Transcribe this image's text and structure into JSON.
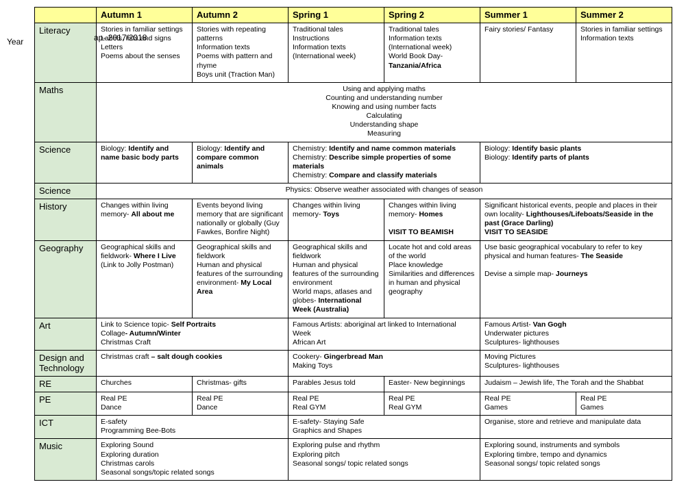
{
  "page": {
    "year_label": "Year",
    "overlay": "ap- 2017/2018"
  },
  "headers": [
    "Autumn 1",
    "Autumn 2",
    "Spring 1",
    "Spring 2",
    "Summer 1",
    "Summer 2"
  ],
  "rows": {
    "literacy": {
      "label": "Literacy",
      "a1": "Stories in familiar settings<br>Labels, lists and signs<br>Letters<br>Poems about the senses",
      "a2": "Stories with repeating patterns<br>Information texts<br>Poems with pattern and rhyme<br>Boys unit (Traction Man)",
      "sp1": "Traditional tales<br>Instructions<br>Information texts<br>(International week)",
      "sp2": "Traditional tales<br>Information texts<br>(International week)<br>World Book Day-<br><b>Tanzania/Africa</b>",
      "su1": "Fairy stories/ Fantasy",
      "su2": "Stories in familiar settings<br>Information texts"
    },
    "maths": {
      "label": "Maths",
      "merged": "Using and applying maths<br>Counting and understanding number<br>Knowing and using number facts<br>Calculating<br>Understanding shape<br>Measuring"
    },
    "science1": {
      "label": "Science",
      "a1": "Biology: <b>Identify and name basic body parts</b>",
      "a2": "Biology: <b>Identify and compare common animals</b>",
      "sp": "Chemistry: <b>Identify and name common materials</b><br>Chemistry: <b>Describe simple properties of some materials</b><br>Chemistry: <b>Compare and classify materials</b>",
      "su": "Biology: <b>Identify basic plants</b><br>Biology: <b>Identify parts of plants</b>"
    },
    "science2": {
      "label": "Science",
      "merged": "Physics: Observe weather associated with changes of season"
    },
    "history": {
      "label": "History",
      "a1": "Changes within living memory- <b>All about me</b>",
      "a2": "Events beyond living memory that are significant nationally or globally (Guy Fawkes, Bonfire Night)",
      "sp1": "Changes within living memory- <b>Toys</b>",
      "sp2": "Changes within living memory- <b>Homes</b><br><br><b>VISIT TO BEAMISH</b>",
      "su": "Significant historical events, people and places in their own locality- <b>Lighthouses/Lifeboats/Seaside in the past (Grace  Darling)</b><br><b>VISIT TO SEASIDE</b>"
    },
    "geography": {
      "label": "Geography",
      "a1": "Geographical skills and fieldwork- <b>Where I Live</b> (Link to Jolly Postman)",
      "a2": "Geographical skills and fieldwork<br>Human and physical features of the surrounding environment- <b>My Local Area</b>",
      "sp1": "Geographical skills and fieldwork<br>Human and physical features of the surrounding environment<br>World maps, atlases and globes- <b>International Week (Australia)</b>",
      "sp2": "Locate hot and cold areas of the world<br>Place knowledge<br>Similarities and differences in human and physical geography",
      "su": "Use basic geographical vocabulary to refer to key physical and human features- <b>The Seaside</b><br><br>Devise a simple map- <b>Journeys</b>"
    },
    "art": {
      "label": "Art",
      "a": "Link to Science topic- <b>Self Portraits</b><br>Collage<b>- Autumn/Winter</b><br>Christmas Craft",
      "sp": "Famous Artists: aboriginal art linked to International Week<br>African Art",
      "su": "Famous Artist- <b>Van Gogh</b><br>Underwater pictures<br>Sculptures- lighthouses"
    },
    "dt": {
      "label": "Design and Technology",
      "a": "Christmas craft <b>– salt dough cookies</b>",
      "sp": "Cookery- <b>Gingerbread Man</b><br>Making Toys",
      "su": "Moving Pictures<br>Sculptures- lighthouses"
    },
    "re": {
      "label": "RE",
      "a1": "Churches",
      "a2": "Christmas- gifts",
      "sp1": "Parables Jesus told",
      "sp2": "Easter- New beginnings",
      "su": "Judaism – Jewish life, The Torah and the Shabbat"
    },
    "pe": {
      "label": "PE",
      "a1": "Real PE<br>Dance",
      "a2": "Real PE<br>Dance",
      "sp1": "Real PE<br>Real GYM",
      "sp2": "Real PE<br>Real GYM",
      "su1": "Real PE<br>Games",
      "su2": "Real PE<br>Games"
    },
    "ict": {
      "label": "ICT",
      "a": "E-safety<br>Programming Bee-Bots",
      "sp": "E-safety- Staying Safe<br>Graphics and Shapes",
      "su": "Organise, store and retrieve and manipulate data"
    },
    "music": {
      "label": "Music",
      "a": "Exploring Sound<br>Exploring duration<br>Christmas carols<br>Seasonal songs/topic related songs",
      "sp": "Exploring pulse and rhythm<br>Exploring pitch<br>Seasonal songs/ topic related songs",
      "su": "Exploring sound, instruments and symbols<br>Exploring timbre, tempo and dynamics<br>Seasonal songs/ topic related songs"
    }
  },
  "colors": {
    "header_bg": "#ffff99",
    "subject_bg": "#d9ead3",
    "border": "#000000"
  }
}
